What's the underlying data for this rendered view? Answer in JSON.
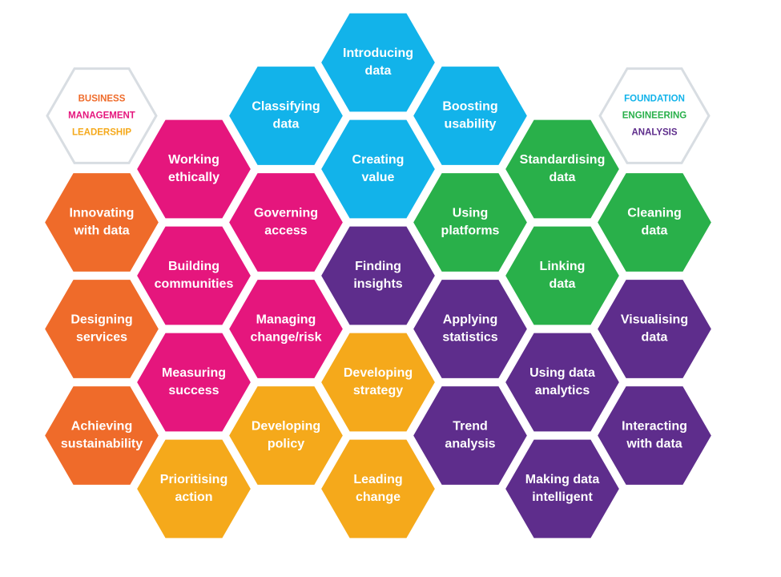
{
  "colors": {
    "leadership": "#f5a91b",
    "business": "#ef6b2a",
    "management": "#e5167d",
    "foundation": "#12b3ea",
    "engineering": "#29b04a",
    "analysis": "#5e2d8c",
    "legend_outline": "#d8dde2"
  },
  "legend_left": {
    "lines": [
      {
        "text": "BUSINESS",
        "color": "#ef6b2a"
      },
      {
        "text": "MANAGEMENT",
        "color": "#e5167d"
      },
      {
        "text": "LEADERSHIP",
        "color": "#f5a91b"
      }
    ]
  },
  "legend_right": {
    "lines": [
      {
        "text": "FOUNDATION",
        "color": "#12b3ea"
      },
      {
        "text": "ENGINEERING",
        "color": "#29b04a"
      },
      {
        "text": "ANALYSIS",
        "color": "#5e2d8c"
      }
    ]
  },
  "hexes": [
    {
      "col": 4,
      "row": 0,
      "lines": [
        "Introducing",
        "data"
      ],
      "group": "foundation"
    },
    {
      "col": 3,
      "row": 0.5,
      "lines": [
        "Classifying",
        "data"
      ],
      "group": "foundation"
    },
    {
      "col": 5,
      "row": 0.5,
      "lines": [
        "Boosting",
        "usability"
      ],
      "group": "foundation"
    },
    {
      "col": 4,
      "row": 1,
      "lines": [
        "Creating",
        "value"
      ],
      "group": "foundation"
    },
    {
      "col": 2,
      "row": 1,
      "lines": [
        "Working",
        "ethically"
      ],
      "group": "management"
    },
    {
      "col": 3,
      "row": 1.5,
      "lines": [
        "Governing",
        "access"
      ],
      "group": "management"
    },
    {
      "col": 2,
      "row": 2,
      "lines": [
        "Building",
        "communities"
      ],
      "group": "management"
    },
    {
      "col": 3,
      "row": 2.5,
      "lines": [
        "Managing",
        "change/risk"
      ],
      "group": "management"
    },
    {
      "col": 2,
      "row": 3,
      "lines": [
        "Measuring",
        "success"
      ],
      "group": "management"
    },
    {
      "col": 1,
      "row": 1.5,
      "lines": [
        "Innovating",
        "with data"
      ],
      "group": "business"
    },
    {
      "col": 1,
      "row": 2.5,
      "lines": [
        "Designing",
        "services"
      ],
      "group": "business"
    },
    {
      "col": 1,
      "row": 3.5,
      "lines": [
        "Achieving",
        "sustainability"
      ],
      "group": "business"
    },
    {
      "col": 4,
      "row": 3,
      "lines": [
        "Developing",
        "strategy"
      ],
      "group": "leadership"
    },
    {
      "col": 3,
      "row": 3.5,
      "lines": [
        "Developing",
        "policy"
      ],
      "group": "leadership"
    },
    {
      "col": 2,
      "row": 4,
      "lines": [
        "Prioritising",
        "action"
      ],
      "group": "leadership"
    },
    {
      "col": 4,
      "row": 4,
      "lines": [
        "Leading",
        "change"
      ],
      "group": "leadership"
    },
    {
      "col": 6,
      "row": 1,
      "lines": [
        "Standardising",
        "data"
      ],
      "group": "engineering"
    },
    {
      "col": 5,
      "row": 1.5,
      "lines": [
        "Using",
        "platforms"
      ],
      "group": "engineering"
    },
    {
      "col": 7,
      "row": 1.5,
      "lines": [
        "Cleaning",
        "data"
      ],
      "group": "engineering"
    },
    {
      "col": 6,
      "row": 2,
      "lines": [
        "Linking",
        "data"
      ],
      "group": "engineering"
    },
    {
      "col": 4,
      "row": 2,
      "lines": [
        "Finding",
        "insights"
      ],
      "group": "analysis"
    },
    {
      "col": 5,
      "row": 2.5,
      "lines": [
        "Applying",
        "statistics"
      ],
      "group": "analysis"
    },
    {
      "col": 7,
      "row": 2.5,
      "lines": [
        "Visualising",
        "data"
      ],
      "group": "analysis"
    },
    {
      "col": 6,
      "row": 3,
      "lines": [
        "Using data",
        "analytics"
      ],
      "group": "analysis"
    },
    {
      "col": 5,
      "row": 3.5,
      "lines": [
        "Trend",
        "analysis"
      ],
      "group": "analysis"
    },
    {
      "col": 7,
      "row": 3.5,
      "lines": [
        "Interacting",
        "with data"
      ],
      "group": "analysis"
    },
    {
      "col": 6,
      "row": 4,
      "lines": [
        "Making data",
        "intelligent"
      ],
      "group": "analysis"
    }
  ]
}
